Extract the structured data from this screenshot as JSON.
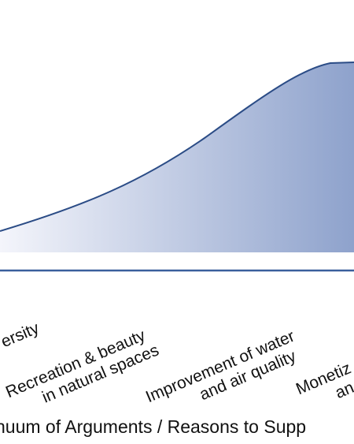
{
  "labels": [
    {
      "line1": "ersity",
      "line2": ""
    },
    {
      "line1": "Recreation & beauty",
      "line2": "in natural spaces"
    },
    {
      "line1": "Improvement of water",
      "line2": "and air quality"
    },
    {
      "line1": "Monetiz",
      "line2": "an"
    }
  ],
  "axis_title": "nuum of Arguments / Reasons to Supp",
  "colors": {
    "fill_light": "#f4f5fb",
    "fill_dark": "#8ea2cc",
    "curve": "#2b4c86",
    "axis": "#3a5f9c"
  }
}
